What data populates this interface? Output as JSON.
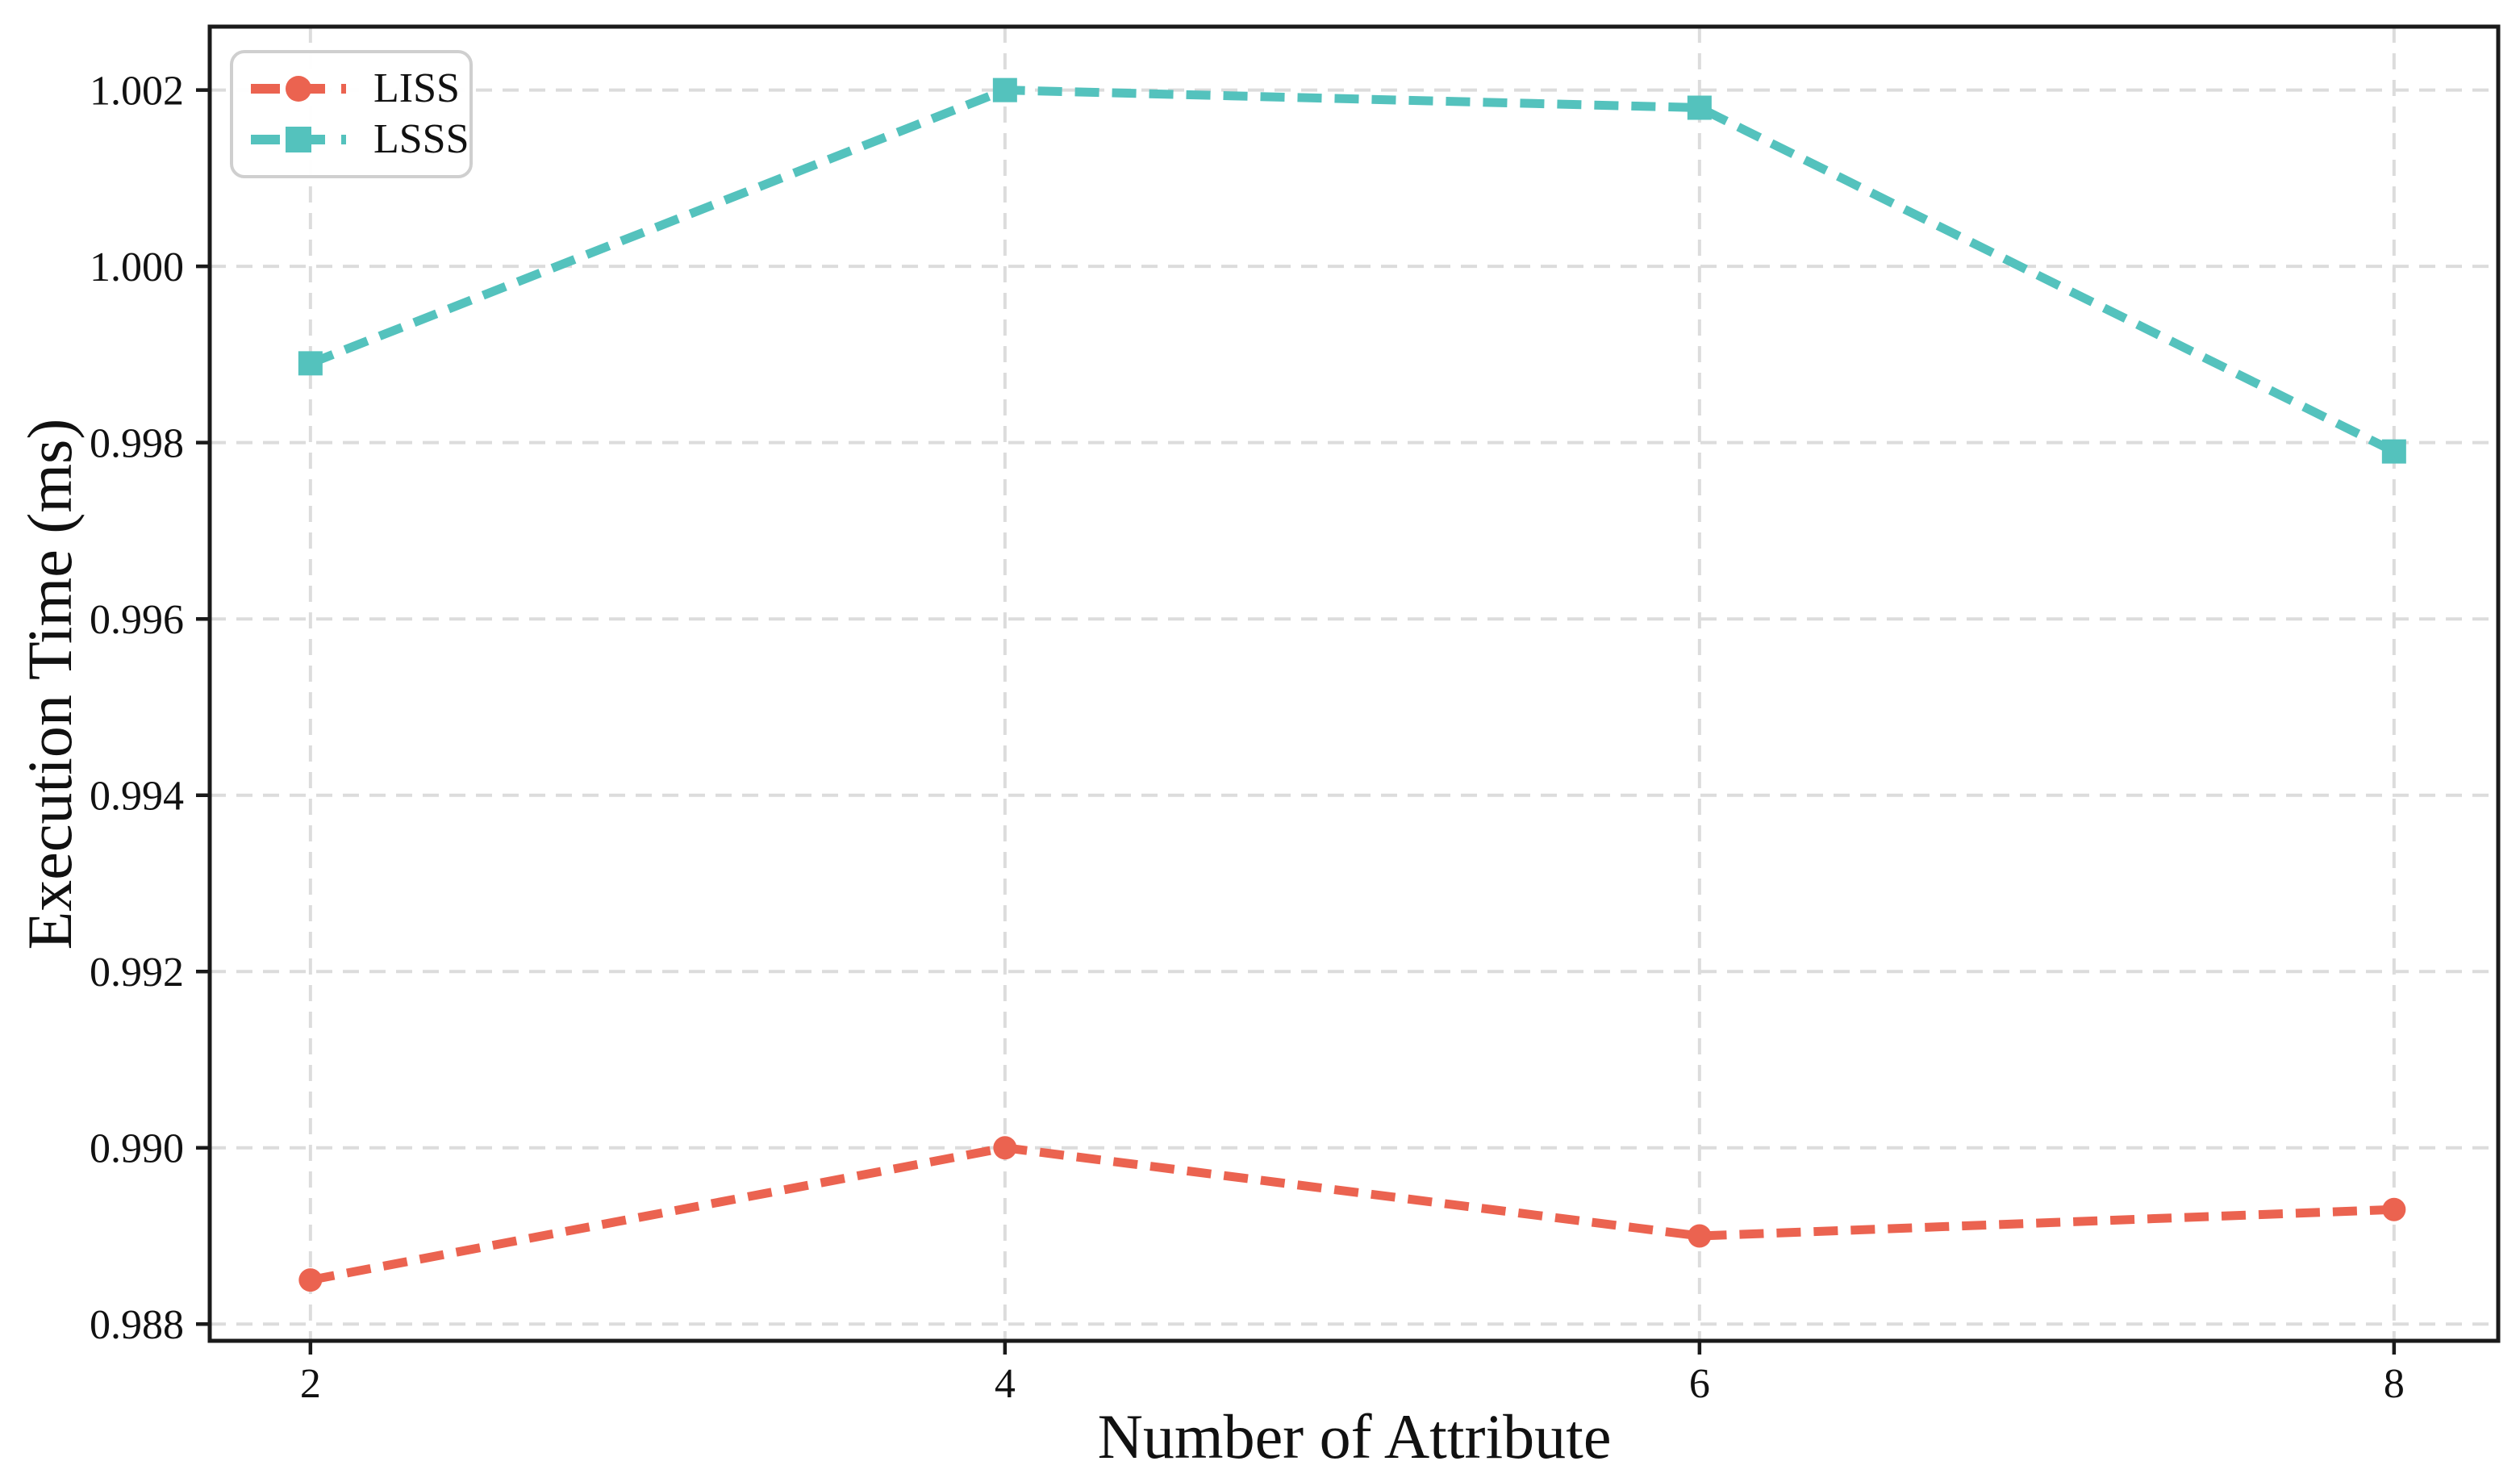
{
  "chart_data": {
    "type": "line",
    "title": "",
    "xlabel": "Number of Attribute",
    "ylabel": "Execution Time (ms)",
    "x": [
      2,
      4,
      6,
      8
    ],
    "series": [
      {
        "name": "LISS",
        "color": "#EB6350",
        "marker": "circle",
        "linestyle": "dashed",
        "values": [
          0.9885,
          0.99,
          0.989,
          0.9893
        ]
      },
      {
        "name": "LSSS",
        "color": "#54C2BD",
        "marker": "square",
        "linestyle": "dashed",
        "values": [
          0.9989,
          1.002,
          1.0018,
          0.9979
        ]
      }
    ],
    "xticks": [
      2,
      4,
      6,
      8
    ],
    "xtick_labels": [
      "2",
      "4",
      "6",
      "8"
    ],
    "yticks": [
      0.988,
      0.99,
      0.992,
      0.994,
      0.996,
      0.998,
      1.0,
      1.002
    ],
    "ytick_labels": [
      "0.988",
      "0.990",
      "0.992",
      "0.994",
      "0.996",
      "0.998",
      "1.000",
      "1.002"
    ],
    "xlim": [
      1.71,
      8.3
    ],
    "ylim": [
      0.98781,
      1.00272
    ],
    "grid": true,
    "grid_style": "dashed",
    "grid_color": "#DCDCDC",
    "spine_color": "#1A1A1A",
    "legend_position": "upper-left"
  },
  "legend": {
    "items": [
      {
        "label": "LISS"
      },
      {
        "label": "LSSS"
      }
    ]
  }
}
